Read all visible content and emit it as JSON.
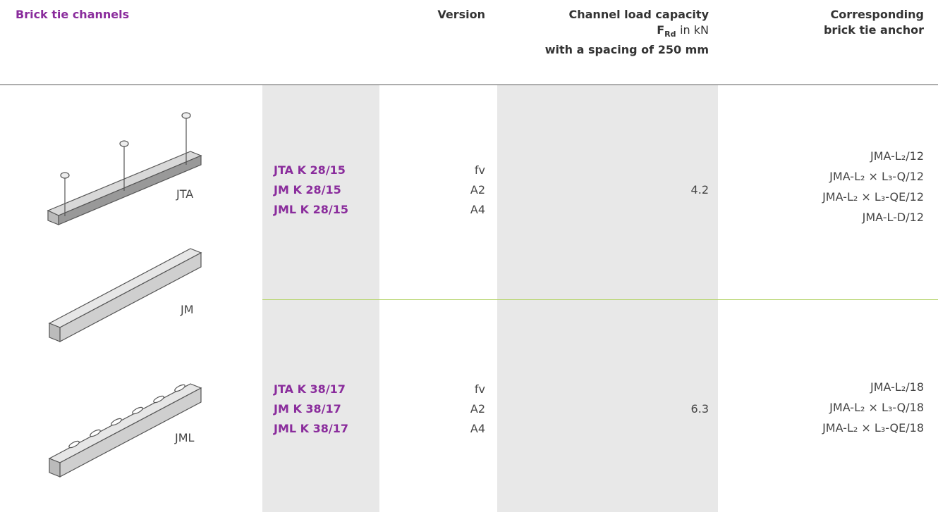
{
  "header": {
    "title": "Brick tie channels",
    "version": "Version",
    "load_capacity": {
      "line1": "Channel load capacity",
      "symbol": "F",
      "subscript": "Rd",
      "unit": "in kN",
      "line3": "with a spacing of 250 mm"
    },
    "anchor": {
      "line1": "Corresponding",
      "line2": "brick tie anchor"
    }
  },
  "illustrations": [
    "JTA",
    "JM",
    "JML"
  ],
  "rows": [
    {
      "products": [
        "JTA K 28/15",
        "JM K 28/15",
        "JML K 28/15"
      ],
      "versions": [
        "fv",
        "A2",
        "A4"
      ],
      "load_capacity": 4.2,
      "anchors": [
        "JMA-L₂/12",
        "JMA-L₂ × L₃-Q/12",
        "JMA-L₂ × L₃-QE/12",
        "JMA-L-D/12"
      ]
    },
    {
      "products": [
        "JTA K 38/17",
        "JM K 38/17",
        "JML K 38/17"
      ],
      "versions": [
        "fv",
        "A2",
        "A4"
      ],
      "load_capacity": 6.3,
      "anchors": [
        "JMA-L₂/18",
        "JMA-L₂ × L₃-Q/18",
        "JMA-L₂ × L₃-QE/18"
      ]
    }
  ]
}
